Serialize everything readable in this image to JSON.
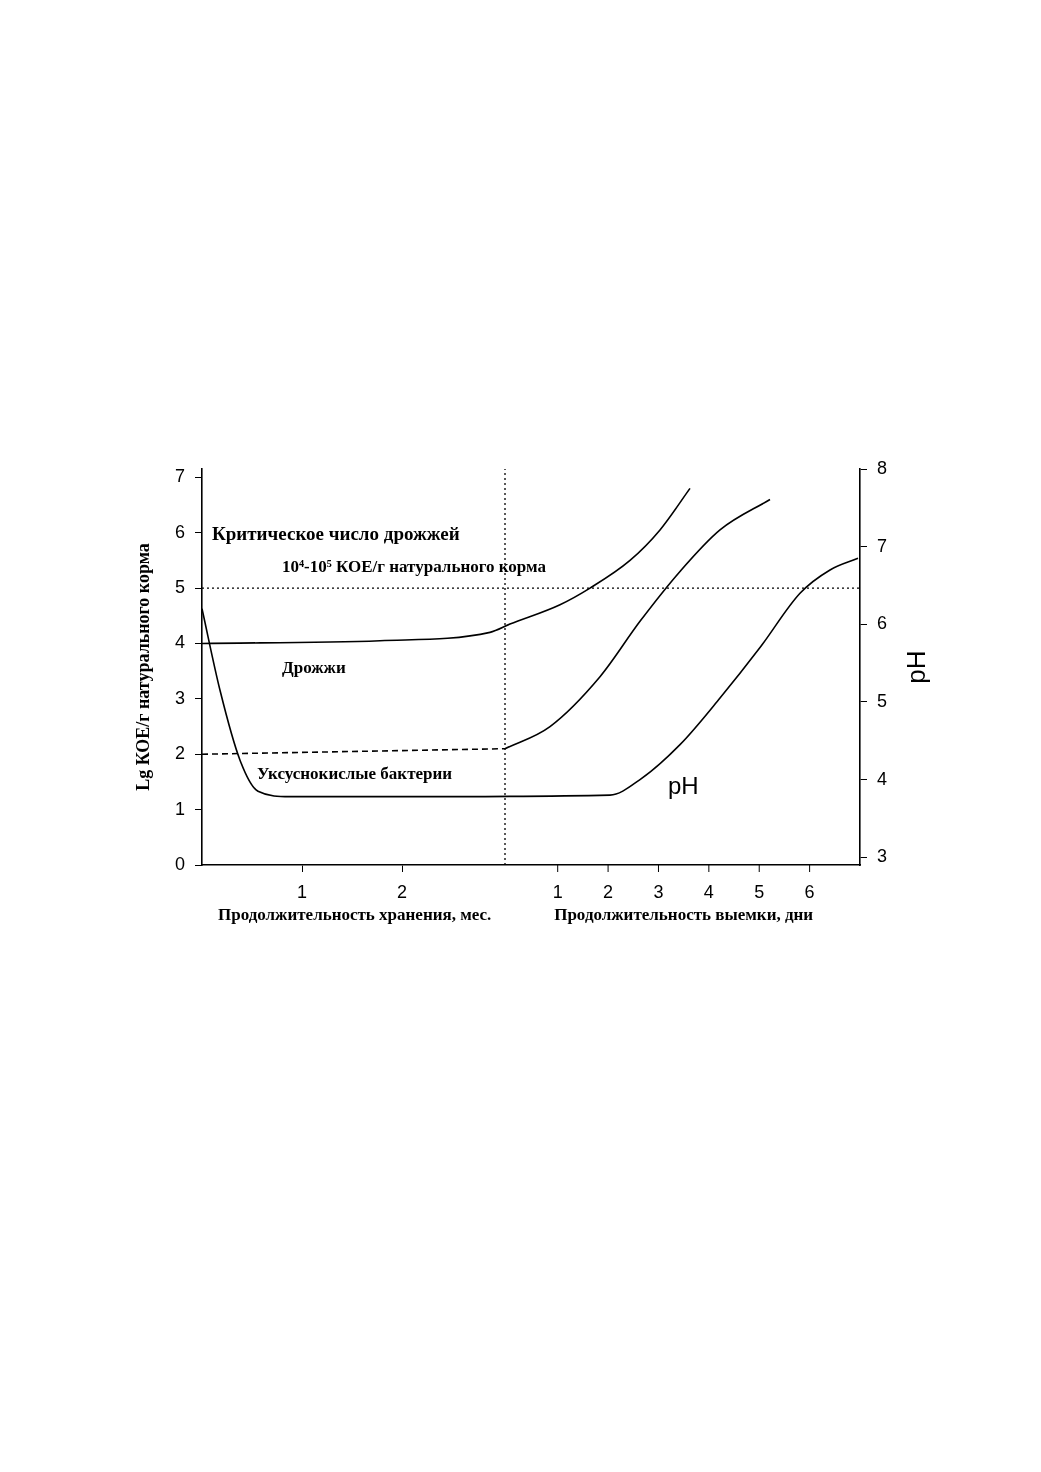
{
  "chart_data": {
    "type": "line",
    "xlabel": "Продолжительность хранения, мес.",
    "x2label": "Продолжительность выемки, дни",
    "ylabel": "Lg КОЕ/г натурального корма",
    "y2label": "pH",
    "xlim": [
      0,
      6.58
    ],
    "xticks": [
      1,
      2
    ],
    "x2lim": [
      -6.06,
      7.0
    ],
    "x2ticks": [
      1,
      2,
      3,
      4,
      5,
      6
    ],
    "ylim": [
      0,
      7.15
    ],
    "yticks": [
      0,
      1,
      2,
      3,
      4,
      5,
      6,
      7
    ],
    "y2lim": [
      2.9,
      8.0
    ],
    "y2ticks": [
      3,
      4,
      5,
      6,
      7,
      8
    ],
    "grid": false,
    "legend": false,
    "marker": "none",
    "series": [
      {
        "name": "Дрожжи",
        "type": "line",
        "color": "#000000",
        "line_style": "solid",
        "x": [
          0,
          1.78,
          2.88,
          3.08,
          3.58,
          3.88,
          4.28,
          4.58,
          4.88
        ],
        "values": [
          4.0,
          4.05,
          4.2,
          4.35,
          4.7,
          5.0,
          5.5,
          6.05,
          6.8
        ]
      },
      {
        "name": "Уксуснокислые бактерии",
        "type": "line",
        "color": "#000000",
        "line_style": "dashed",
        "x": [
          0,
          3.03
        ],
        "values": [
          2.0,
          2.1
        ]
      },
      {
        "type": "line",
        "color": "#000000",
        "line_style": "solid",
        "x": [
          3.03,
          3.48,
          3.98,
          4.38,
          4.78,
          5.18,
          5.68
        ],
        "values": [
          2.1,
          2.5,
          3.4,
          4.4,
          5.3,
          6.05,
          6.6
        ]
      },
      {
        "name": "pH",
        "type": "line",
        "axis": "y2",
        "color": "#000000",
        "line_style": "solid",
        "x": [
          0,
          0.18,
          0.38,
          0.56,
          0.88,
          1.98,
          4.08,
          4.38,
          4.78,
          5.18,
          5.58,
          5.98,
          6.28,
          6.56
        ],
        "values": [
          6.2,
          5.15,
          4.25,
          3.85,
          3.78,
          3.78,
          3.8,
          4.0,
          4.45,
          5.05,
          5.7,
          6.4,
          6.7,
          6.85
        ]
      }
    ],
    "ref_lines": [
      {
        "axis": "y",
        "value": 5,
        "line_style": "dotted",
        "label": "Критическое число дрожжей\n10⁴-10⁵ КОЕ/г натурального корма"
      },
      {
        "axis": "x",
        "value": 3.03,
        "line_style": "dotted"
      }
    ]
  }
}
